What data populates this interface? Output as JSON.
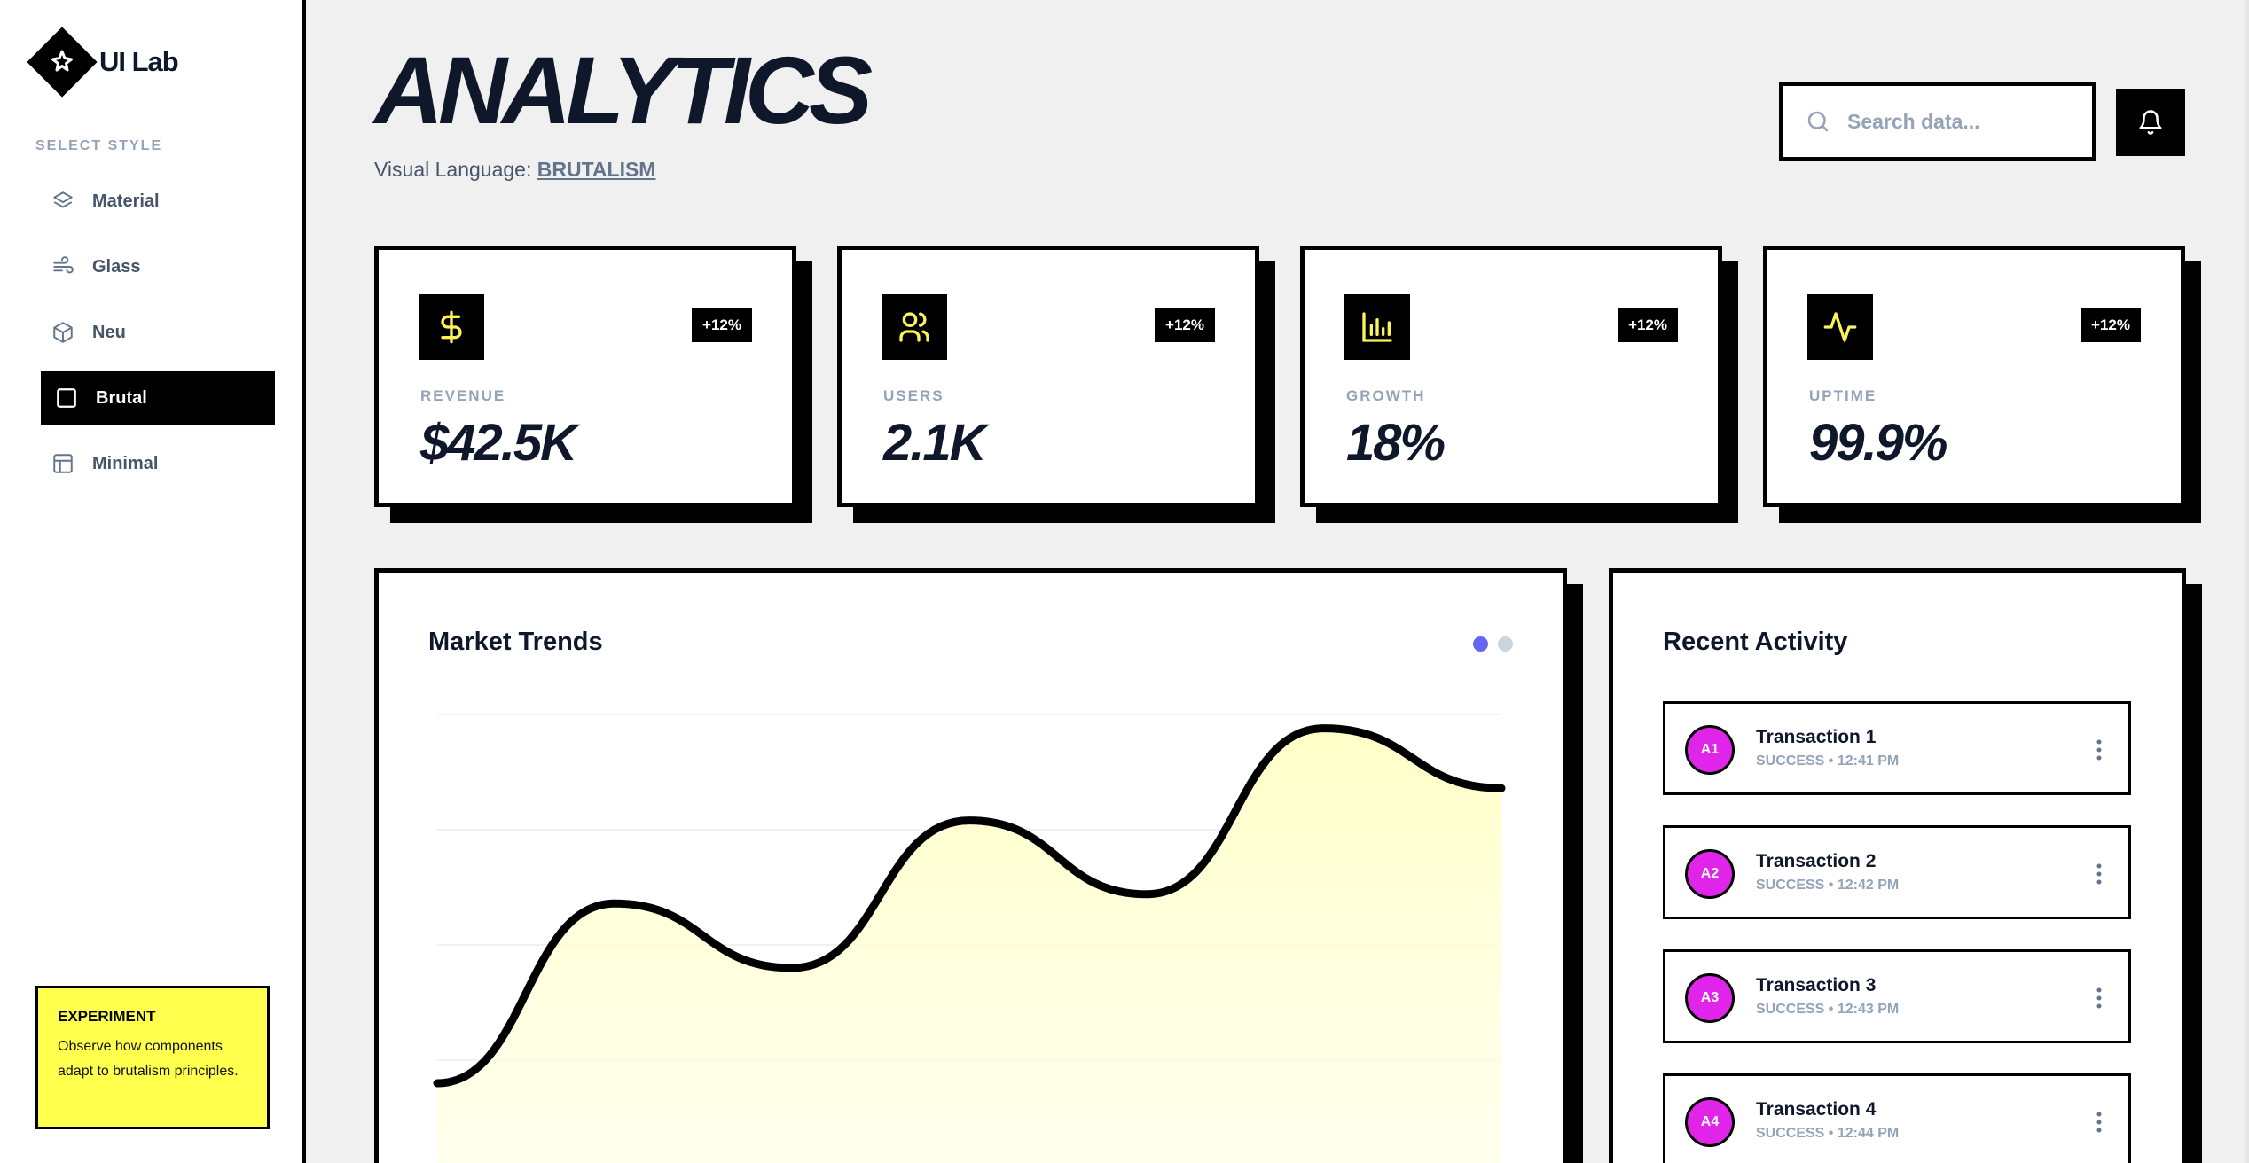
{
  "app": {
    "name": "UI Lab"
  },
  "sidebar": {
    "section_label": "SELECT STYLE",
    "items": [
      {
        "label": "Material",
        "icon": "layers-icon",
        "active": false
      },
      {
        "label": "Glass",
        "icon": "wind-icon",
        "active": false
      },
      {
        "label": "Neu",
        "icon": "box-icon",
        "active": false
      },
      {
        "label": "Brutal",
        "icon": "square-icon",
        "active": true
      },
      {
        "label": "Minimal",
        "icon": "layout-icon",
        "active": false
      }
    ],
    "experiment": {
      "title": "EXPERIMENT",
      "body": "Observe how components adapt to brutalism principles."
    }
  },
  "header": {
    "title": "ANALYTICS",
    "subtitle_prefix": "Visual Language:",
    "style_name": "BRUTALISM",
    "search_placeholder": "Search data..."
  },
  "stats": [
    {
      "label": "REVENUE",
      "value": "$42.5K",
      "badge": "+12%",
      "icon": "dollar-icon"
    },
    {
      "label": "USERS",
      "value": "2.1K",
      "badge": "+12%",
      "icon": "users-icon"
    },
    {
      "label": "GROWTH",
      "value": "18%",
      "badge": "+12%",
      "icon": "bar-chart-icon"
    },
    {
      "label": "UPTIME",
      "value": "99.9%",
      "badge": "+12%",
      "icon": "activity-icon"
    }
  ],
  "market": {
    "title": "Market Trends"
  },
  "chart_data": {
    "type": "area",
    "title": "Market Trends",
    "x": [
      0,
      1,
      2,
      3,
      4,
      5,
      6
    ],
    "values": [
      20,
      59,
      45,
      77,
      61,
      97,
      84
    ],
    "ylim": [
      0,
      100
    ],
    "grid": true,
    "legend": "none"
  },
  "activity": {
    "title": "Recent Activity",
    "items": [
      {
        "avatar": "A1",
        "name": "Transaction 1",
        "meta": "SUCCESS • 12:41 PM"
      },
      {
        "avatar": "A2",
        "name": "Transaction 2",
        "meta": "SUCCESS • 12:42 PM"
      },
      {
        "avatar": "A3",
        "name": "Transaction 3",
        "meta": "SUCCESS • 12:43 PM"
      },
      {
        "avatar": "A4",
        "name": "Transaction 4",
        "meta": "SUCCESS • 12:44 PM"
      }
    ]
  },
  "colors": {
    "accent": "#ffff4d",
    "icon_accent": "#faf35a",
    "avatar": "#e024e9",
    "dot_active": "#6366f1",
    "dot_inactive": "#cbd5e1"
  }
}
